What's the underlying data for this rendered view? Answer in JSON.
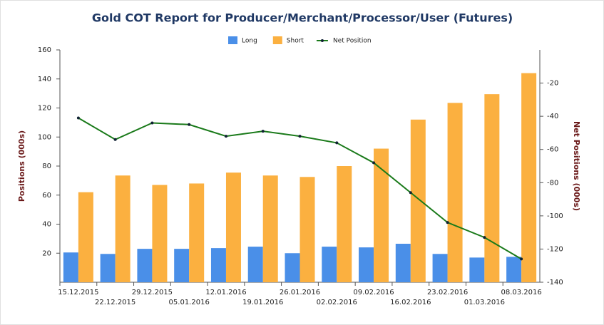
{
  "chart_data": {
    "type": "bar",
    "title": "Gold COT Report for Producer/Merchant/Processor/User (Futures)",
    "y_label": "Positions (000s)",
    "y2_label": "Net Positions (000s)",
    "categories": [
      "15.12.2015",
      "22.12.2015",
      "29.12.2015",
      "05.01.2016",
      "12.01.2016",
      "19.01.2016",
      "26.01.2016",
      "02.02.2016",
      "09.02.2016",
      "16.02.2016",
      "23.02.2016",
      "01.03.2016",
      "08.03.2016"
    ],
    "series": [
      {
        "name": "Long",
        "color": "#4a8fe8",
        "type": "bar",
        "values": [
          20.5,
          19.5,
          23,
          23,
          23.5,
          24.5,
          20,
          24.5,
          24,
          26.5,
          19.5,
          17,
          17.5
        ]
      },
      {
        "name": "Short",
        "color": "#fbb040",
        "type": "bar",
        "values": [
          62,
          73.5,
          67,
          68,
          75.5,
          73.5,
          72.5,
          80,
          92,
          112,
          123.5,
          129.5,
          144
        ]
      },
      {
        "name": "Net Position",
        "color": "#1a7a1a",
        "type": "line",
        "axis": "y2",
        "values": [
          -41,
          -54,
          -44,
          -45,
          -52,
          -49,
          -52,
          -56,
          -68,
          -86,
          -104,
          -113,
          -126
        ]
      }
    ],
    "ylim": [
      0,
      160
    ],
    "yticks": [
      20,
      40,
      60,
      80,
      100,
      120,
      140,
      160
    ],
    "y2lim": [
      -140,
      0
    ],
    "y2ticks": [
      -140,
      -120,
      -100,
      -80,
      -60,
      -40,
      -20
    ],
    "legend": "top"
  }
}
